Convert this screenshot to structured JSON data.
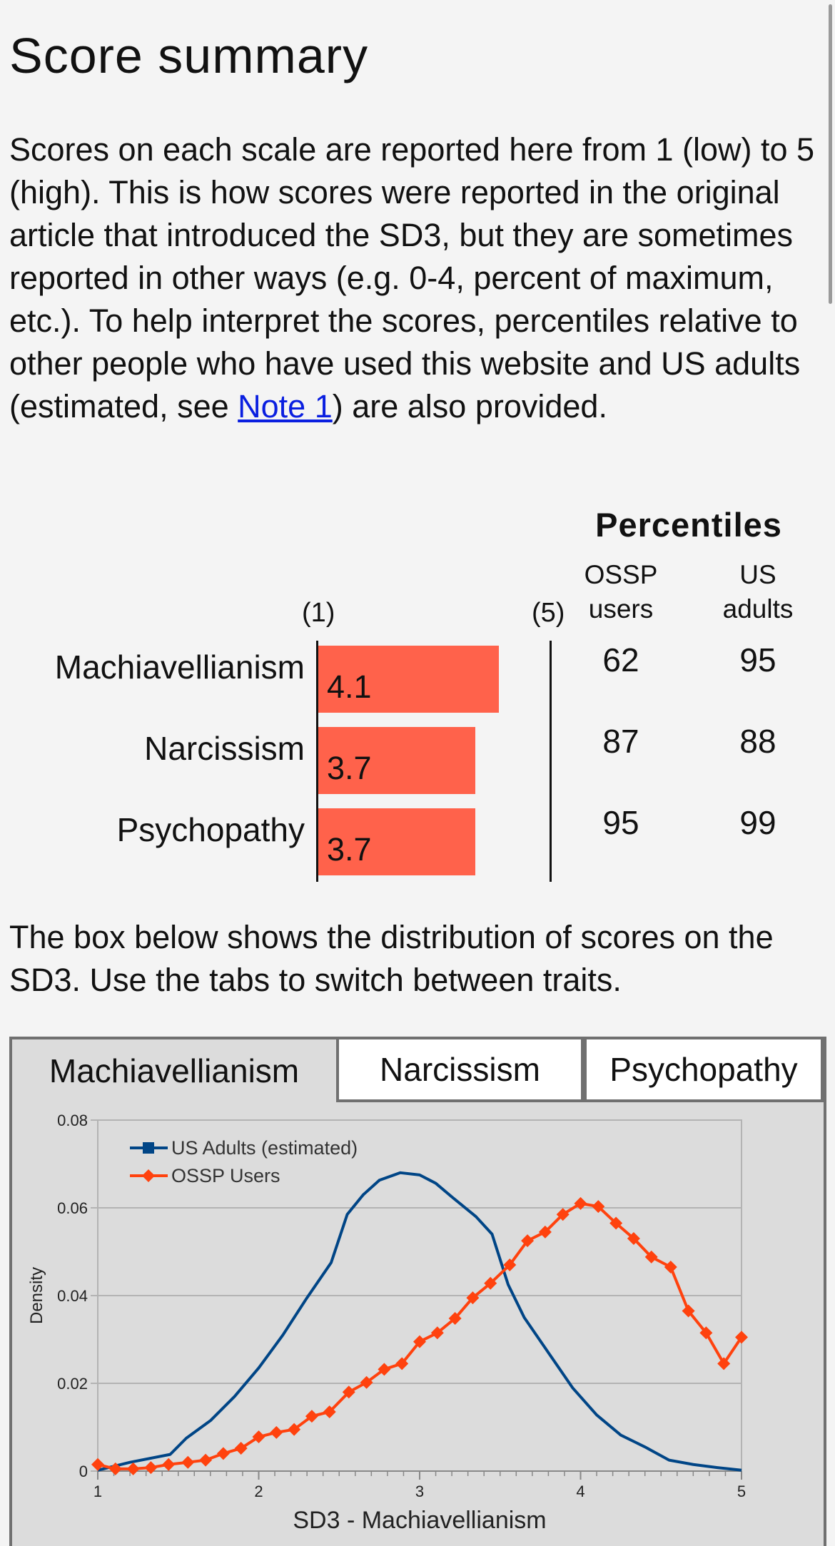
{
  "page": {
    "title": "Score summary",
    "intro_text": "Scores on each scale are reported here from 1 (low) to 5 (high). This is how scores were reported in the original article that introduced the SD3, but they are sometimes reported in other ways (e.g. 0-4, percent of maximum, etc.). To help interpret the scores, percentiles relative to other people who have used this website and US adults (estimated, see ",
    "note_link": "Note 1",
    "intro_tail": ") are also provided."
  },
  "scores": {
    "percentiles_title": "Percentiles",
    "col_ossp_line1": "OSSP",
    "col_ossp_line2": "users",
    "col_us_line1": "US",
    "col_us_line2": "adults",
    "scale_min": "(1)",
    "scale_max": "(5)",
    "rows": [
      {
        "trait": "Machiavellianism",
        "score": "4.1",
        "value": 4.1,
        "ossp": "62",
        "us": "95"
      },
      {
        "trait": "Narcissism",
        "score": "3.7",
        "value": 3.7,
        "ossp": "87",
        "us": "88"
      },
      {
        "trait": "Psychopathy",
        "score": "3.7",
        "value": 3.7,
        "ossp": "95",
        "us": "99"
      }
    ],
    "bar_color": "#ff624b"
  },
  "distribution": {
    "description": "The box below shows the distribution of scores on the SD3. Use the tabs to switch between traits.",
    "tabs": [
      "Machiavellianism",
      "Narcissism",
      "Psychopathy"
    ],
    "active_tab": "Machiavellianism"
  },
  "chart_data": {
    "type": "line",
    "xlabel": "SD3 - Machiavellianism",
    "ylabel": "Density",
    "xlim": [
      1,
      5
    ],
    "ylim": [
      0,
      0.08
    ],
    "xticks": [
      "1",
      "2",
      "3",
      "4",
      "5"
    ],
    "yticks": [
      "0",
      "0.02",
      "0.04",
      "0.06",
      "0.08"
    ],
    "grid": true,
    "legend_position": "top-left",
    "series": [
      {
        "name": "US Adults (estimated)",
        "color": "#004586",
        "marker": "none",
        "x": [
          1.0,
          1.2,
          1.45,
          1.55,
          1.7,
          1.85,
          2.0,
          2.15,
          2.3,
          2.45,
          2.55,
          2.65,
          2.75,
          2.88,
          3.0,
          3.1,
          3.2,
          3.35,
          3.45,
          3.55,
          3.65,
          3.8,
          3.95,
          4.1,
          4.25,
          4.4,
          4.55,
          4.7,
          4.85,
          5.0
        ],
        "y": [
          0.0002,
          0.002,
          0.0038,
          0.0075,
          0.0115,
          0.017,
          0.0235,
          0.031,
          0.0395,
          0.0475,
          0.0585,
          0.063,
          0.0663,
          0.068,
          0.0675,
          0.0656,
          0.0625,
          0.058,
          0.054,
          0.0425,
          0.035,
          0.027,
          0.019,
          0.0128,
          0.0082,
          0.0055,
          0.0025,
          0.0015,
          0.0008,
          0.0002
        ]
      },
      {
        "name": "OSSP Users",
        "color": "#ff420e",
        "marker": "diamond",
        "x": [
          1.0,
          1.11,
          1.22,
          1.33,
          1.44,
          1.56,
          1.67,
          1.78,
          1.89,
          2.0,
          2.11,
          2.22,
          2.33,
          2.44,
          2.56,
          2.67,
          2.78,
          2.89,
          3.0,
          3.11,
          3.22,
          3.33,
          3.44,
          3.56,
          3.67,
          3.78,
          3.89,
          4.0,
          4.11,
          4.22,
          4.33,
          4.44,
          4.56,
          4.67,
          4.78,
          4.89,
          5.0
        ],
        "y": [
          0.0015,
          0.0005,
          0.0005,
          0.0008,
          0.0015,
          0.002,
          0.0025,
          0.004,
          0.0052,
          0.0078,
          0.0088,
          0.0095,
          0.0125,
          0.0135,
          0.018,
          0.0202,
          0.0232,
          0.0245,
          0.0295,
          0.0315,
          0.0348,
          0.0395,
          0.0428,
          0.047,
          0.0525,
          0.0545,
          0.0585,
          0.061,
          0.0603,
          0.0565,
          0.053,
          0.0488,
          0.0465,
          0.0365,
          0.0315,
          0.0245,
          0.0305
        ]
      }
    ]
  }
}
